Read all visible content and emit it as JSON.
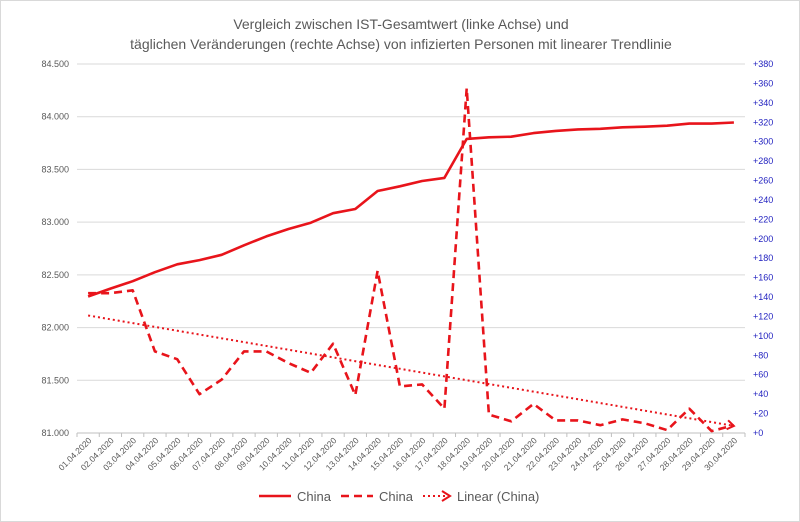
{
  "chart_data": {
    "type": "line",
    "title_line1": "Vergleich zwischen  IST-Gesamtwert (linke Achse) und",
    "title_line2": "täglichen Veränderungen (rechte Achse) von infizierten Personen mit linearer Trendlinie",
    "categories": [
      "01.04.2020",
      "02.04.2020",
      "03.04.2020",
      "04.04.2020",
      "05.04.2020",
      "06.04.2020",
      "07.04.2020",
      "08.04.2020",
      "09.04.2020",
      "10.04.2020",
      "11.04.2020",
      "12.04.2020",
      "13.04.2020",
      "14.04.2020",
      "15.04.2020",
      "16.04.2020",
      "17.04.2020",
      "18.04.2020",
      "19.04.2020",
      "20.04.2020",
      "21.04.2020",
      "22.04.2020",
      "23.04.2020",
      "24.04.2020",
      "25.04.2020",
      "26.04.2020",
      "27.04.2020",
      "28.04.2020",
      "29.04.2020",
      "30.04.2020"
    ],
    "y_left": {
      "min": 81000,
      "max": 84500,
      "ticks": [
        "81.000",
        "81.500",
        "82.000",
        "82.500",
        "83.000",
        "83.500",
        "84.000",
        "84.500"
      ]
    },
    "y_right": {
      "min": 0,
      "max": 380,
      "ticks": [
        "+0",
        "+20",
        "+40",
        "+60",
        "+80",
        "+100",
        "+120",
        "+140",
        "+160",
        "+180",
        "+200",
        "+220",
        "+240",
        "+260",
        "+280",
        "+300",
        "+320",
        "+340",
        "+360",
        "+380"
      ]
    },
    "series": [
      {
        "name": "China",
        "axis": "left",
        "style": "solid",
        "color": "#e8141b",
        "values": [
          82295,
          82370,
          82440,
          82525,
          82600,
          82640,
          82690,
          82780,
          82865,
          82935,
          82995,
          83085,
          83125,
          83295,
          83340,
          83390,
          83420,
          83790,
          83805,
          83810,
          83845,
          83865,
          83880,
          83885,
          83900,
          83905,
          83915,
          83935,
          83935,
          83945
        ]
      },
      {
        "name": "China",
        "axis": "right",
        "style": "dashed",
        "color": "#e8141b",
        "values": [
          144,
          144,
          147,
          84,
          76,
          40,
          55,
          84,
          84,
          72,
          62,
          92,
          39,
          167,
          48,
          50,
          25,
          355,
          19,
          12,
          30,
          13,
          13,
          8,
          14,
          10,
          3,
          25,
          2,
          8
        ]
      },
      {
        "name": "Linear (China)",
        "axis": "right",
        "style": "dotted",
        "color": "#e8141b",
        "trend_of": "China (right axis)"
      }
    ],
    "legend": {
      "position": "bottom",
      "items": [
        "China",
        "China",
        "Linear (China)"
      ]
    },
    "grid": "horizontal"
  }
}
